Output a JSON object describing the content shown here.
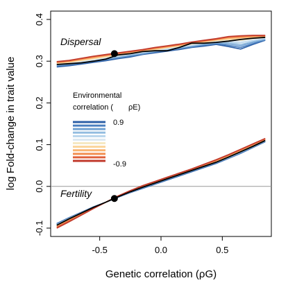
{
  "chart_data": {
    "type": "line",
    "xlabel": "Genetic correlation (ρG)",
    "ylabel": "log Fold-change in trait value",
    "xlim": [
      -0.9,
      0.9
    ],
    "ylim": [
      -0.12,
      0.42
    ],
    "x_ticks": [
      -0.5,
      0.0,
      0.5
    ],
    "x_tick_labels": [
      "-0.5",
      "0.0",
      "0.5"
    ],
    "y_ticks": [
      -0.1,
      0.0,
      0.1,
      0.2,
      0.3,
      0.4
    ],
    "y_tick_labels": [
      "-0.1",
      "0.0",
      "0.1",
      "0.2",
      "0.3",
      "0.4"
    ],
    "reference_line_y": 0.0,
    "grid": false,
    "panels": [
      {
        "label": "Dispersal",
        "x": [
          -0.85,
          -0.75,
          -0.65,
          -0.55,
          -0.45,
          -0.35,
          -0.25,
          -0.15,
          -0.05,
          0.05,
          0.15,
          0.25,
          0.35,
          0.45,
          0.55,
          0.65,
          0.75,
          0.85
        ],
        "mean_series": [
          0.292,
          0.294,
          0.296,
          0.3,
          0.305,
          0.315,
          0.318,
          0.323,
          0.325,
          0.325,
          0.333,
          0.343,
          0.343,
          0.345,
          0.348,
          0.352,
          0.355,
          0.357
        ],
        "highlight_point": {
          "x": -0.38,
          "y": 0.318
        },
        "env_series": [
          {
            "color": "#2c5fa6",
            "values": [
              0.286,
              0.289,
              0.293,
              0.297,
              0.301,
              0.306,
              0.31,
              0.316,
              0.32,
              0.324,
              0.328,
              0.333,
              0.336,
              0.34,
              0.335,
              0.329,
              0.34,
              0.35
            ]
          },
          {
            "color": "#4a7fbf",
            "values": [
              0.288,
              0.291,
              0.295,
              0.299,
              0.303,
              0.308,
              0.312,
              0.317,
              0.322,
              0.326,
              0.33,
              0.334,
              0.338,
              0.342,
              0.338,
              0.333,
              0.342,
              0.351
            ]
          },
          {
            "color": "#6fa0d2",
            "values": [
              0.29,
              0.293,
              0.296,
              0.301,
              0.305,
              0.309,
              0.314,
              0.318,
              0.323,
              0.327,
              0.331,
              0.336,
              0.34,
              0.343,
              0.341,
              0.337,
              0.345,
              0.352
            ]
          },
          {
            "color": "#93bde0",
            "values": [
              0.291,
              0.294,
              0.298,
              0.302,
              0.306,
              0.311,
              0.315,
              0.32,
              0.324,
              0.328,
              0.333,
              0.337,
              0.341,
              0.345,
              0.344,
              0.34,
              0.347,
              0.353
            ]
          },
          {
            "color": "#b9d6ec",
            "values": [
              0.292,
              0.295,
              0.299,
              0.303,
              0.308,
              0.312,
              0.317,
              0.321,
              0.325,
              0.329,
              0.334,
              0.338,
              0.343,
              0.347,
              0.346,
              0.344,
              0.35,
              0.355
            ]
          },
          {
            "color": "#dde9f2",
            "values": [
              0.293,
              0.296,
              0.3,
              0.304,
              0.309,
              0.313,
              0.318,
              0.322,
              0.326,
              0.331,
              0.335,
              0.34,
              0.344,
              0.348,
              0.348,
              0.347,
              0.352,
              0.356
            ]
          },
          {
            "color": "#f6e8c3",
            "values": [
              0.294,
              0.297,
              0.301,
              0.305,
              0.31,
              0.314,
              0.319,
              0.323,
              0.327,
              0.332,
              0.336,
              0.341,
              0.345,
              0.349,
              0.351,
              0.35,
              0.354,
              0.357
            ]
          },
          {
            "color": "#fbd49a",
            "values": [
              0.295,
              0.298,
              0.302,
              0.307,
              0.311,
              0.316,
              0.32,
              0.324,
              0.328,
              0.333,
              0.337,
              0.342,
              0.346,
              0.35,
              0.353,
              0.353,
              0.356,
              0.358
            ]
          },
          {
            "color": "#f9b472",
            "values": [
              0.296,
              0.299,
              0.304,
              0.308,
              0.313,
              0.317,
              0.321,
              0.325,
              0.33,
              0.334,
              0.338,
              0.343,
              0.347,
              0.351,
              0.355,
              0.356,
              0.358,
              0.359
            ]
          },
          {
            "color": "#f28e4f",
            "values": [
              0.297,
              0.3,
              0.305,
              0.31,
              0.314,
              0.318,
              0.322,
              0.326,
              0.331,
              0.335,
              0.339,
              0.344,
              0.348,
              0.352,
              0.357,
              0.358,
              0.36,
              0.36
            ]
          },
          {
            "color": "#e0613a",
            "values": [
              0.298,
              0.301,
              0.306,
              0.311,
              0.315,
              0.319,
              0.323,
              0.327,
              0.332,
              0.336,
              0.34,
              0.345,
              0.349,
              0.353,
              0.358,
              0.36,
              0.361,
              0.361
            ]
          },
          {
            "color": "#c0392b",
            "values": [
              0.299,
              0.302,
              0.307,
              0.312,
              0.316,
              0.32,
              0.324,
              0.328,
              0.333,
              0.337,
              0.341,
              0.346,
              0.35,
              0.354,
              0.359,
              0.361,
              0.362,
              0.362
            ]
          }
        ]
      },
      {
        "label": "Fertility",
        "x": [
          -0.85,
          -0.75,
          -0.65,
          -0.55,
          -0.45,
          -0.35,
          -0.25,
          -0.15,
          -0.05,
          0.05,
          0.15,
          0.25,
          0.35,
          0.45,
          0.55,
          0.65,
          0.75,
          0.85
        ],
        "mean_series": [
          -0.093,
          -0.078,
          -0.064,
          -0.05,
          -0.038,
          -0.025,
          -0.013,
          -0.002,
          0.008,
          0.018,
          0.028,
          0.038,
          0.048,
          0.058,
          0.07,
          0.083,
          0.096,
          0.11
        ],
        "highlight_point": {
          "x": -0.38,
          "y": -0.029
        },
        "env_series": [
          {
            "color": "#2c5fa6",
            "values": [
              -0.089,
              -0.075,
              -0.062,
              -0.049,
              -0.038,
              -0.026,
              -0.015,
              -0.005,
              0.005,
              0.015,
              0.025,
              0.035,
              0.045,
              0.055,
              0.067,
              0.079,
              0.093,
              0.107
            ]
          },
          {
            "color": "#4a7fbf",
            "values": [
              -0.09,
              -0.076,
              -0.063,
              -0.05,
              -0.038,
              -0.026,
              -0.014,
              -0.004,
              0.006,
              0.016,
              0.026,
              0.036,
              0.046,
              0.056,
              0.068,
              0.08,
              0.094,
              0.108
            ]
          },
          {
            "color": "#6fa0d2",
            "values": [
              -0.091,
              -0.076,
              -0.063,
              -0.05,
              -0.038,
              -0.025,
              -0.014,
              -0.003,
              0.007,
              0.017,
              0.027,
              0.037,
              0.047,
              0.057,
              0.068,
              0.081,
              0.094,
              0.108
            ]
          },
          {
            "color": "#93bde0",
            "values": [
              -0.092,
              -0.077,
              -0.064,
              -0.05,
              -0.038,
              -0.025,
              -0.013,
              -0.002,
              0.008,
              0.018,
              0.028,
              0.038,
              0.048,
              0.058,
              0.069,
              0.082,
              0.095,
              0.109
            ]
          },
          {
            "color": "#b9d6ec",
            "values": [
              -0.093,
              -0.078,
              -0.064,
              -0.051,
              -0.038,
              -0.025,
              -0.013,
              -0.002,
              0.008,
              0.018,
              0.028,
              0.038,
              0.048,
              0.058,
              0.07,
              0.083,
              0.096,
              0.11
            ]
          },
          {
            "color": "#dde9f2",
            "values": [
              -0.094,
              -0.079,
              -0.065,
              -0.051,
              -0.038,
              -0.025,
              -0.013,
              -0.001,
              0.009,
              0.019,
              0.029,
              0.039,
              0.049,
              0.059,
              0.071,
              0.084,
              0.097,
              0.111
            ]
          },
          {
            "color": "#f6e8c3",
            "values": [
              -0.094,
              -0.079,
              -0.065,
              -0.051,
              -0.038,
              -0.024,
              -0.012,
              -0.001,
              0.009,
              0.019,
              0.029,
              0.039,
              0.049,
              0.059,
              0.071,
              0.084,
              0.097,
              0.111
            ]
          },
          {
            "color": "#fbd49a",
            "values": [
              -0.095,
              -0.08,
              -0.066,
              -0.052,
              -0.038,
              -0.024,
              -0.012,
              0.0,
              0.01,
              0.02,
              0.03,
              0.04,
              0.05,
              0.06,
              0.072,
              0.085,
              0.098,
              0.112
            ]
          },
          {
            "color": "#f9b472",
            "values": [
              -0.096,
              -0.081,
              -0.066,
              -0.052,
              -0.038,
              -0.024,
              -0.011,
              0.0,
              0.01,
              0.02,
              0.03,
              0.04,
              0.05,
              0.061,
              0.073,
              0.086,
              0.099,
              0.112
            ]
          },
          {
            "color": "#f28e4f",
            "values": [
              -0.097,
              -0.082,
              -0.067,
              -0.052,
              -0.038,
              -0.023,
              -0.011,
              0.001,
              0.011,
              0.021,
              0.031,
              0.041,
              0.051,
              0.062,
              0.074,
              0.087,
              0.1,
              0.113
            ]
          },
          {
            "color": "#e0613a",
            "values": [
              -0.098,
              -0.083,
              -0.068,
              -0.053,
              -0.038,
              -0.023,
              -0.01,
              0.001,
              0.011,
              0.021,
              0.031,
              0.041,
              0.052,
              0.063,
              0.075,
              0.088,
              0.101,
              0.114
            ]
          },
          {
            "color": "#c0392b",
            "values": [
              -0.1,
              -0.085,
              -0.069,
              -0.053,
              -0.038,
              -0.023,
              -0.01,
              0.002,
              0.012,
              0.022,
              0.032,
              0.042,
              0.053,
              0.064,
              0.076,
              0.089,
              0.102,
              0.115
            ]
          }
        ]
      }
    ],
    "legend": {
      "title_line1": "Environmental",
      "title_line2": "correlation (",
      "title_symbol": "ρE)",
      "top_label": "0.9",
      "bottom_label": "-0.9",
      "placement": "left-middle",
      "colors": [
        "#2c5fa6",
        "#4a7fbf",
        "#6fa0d2",
        "#93bde0",
        "#b9d6ec",
        "#dde9f2",
        "#f6e8c3",
        "#fbd49a",
        "#f9b472",
        "#f28e4f",
        "#e0613a",
        "#c0392b"
      ]
    },
    "colors": {
      "mean_line": "#000000",
      "reference_line": "#999999",
      "highlight_point": "#000000"
    }
  }
}
